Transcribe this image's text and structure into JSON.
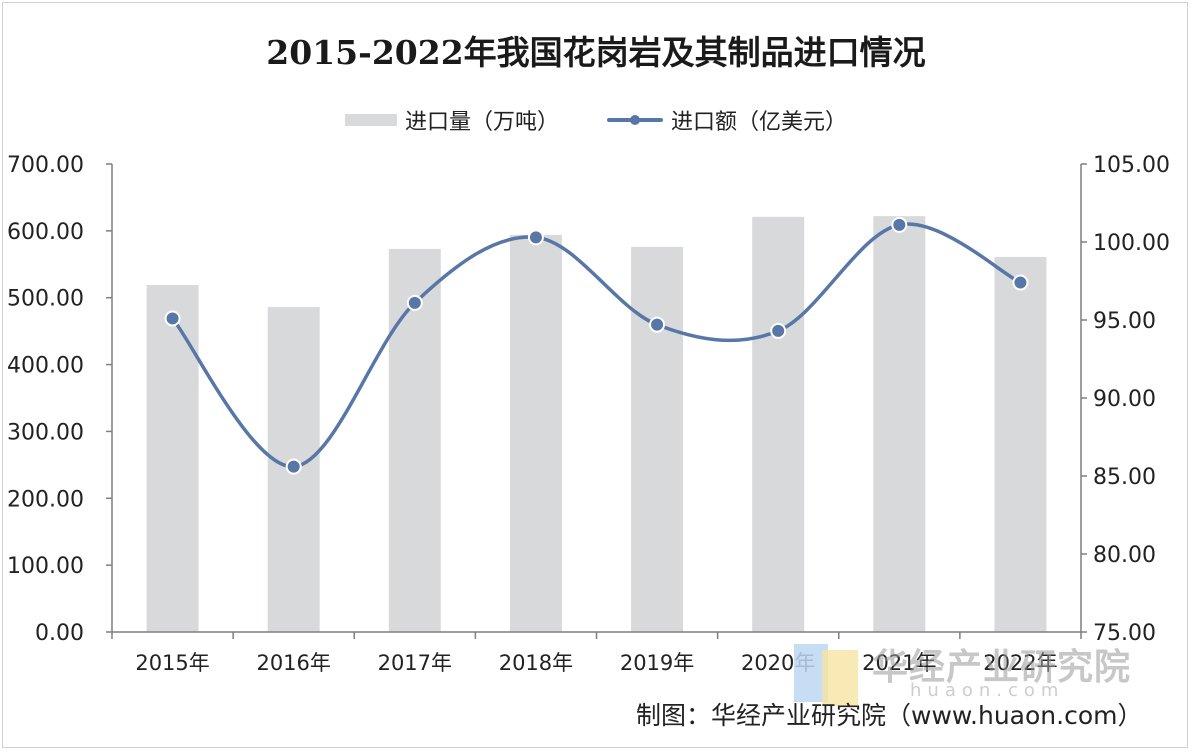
{
  "title": "2015-2022年我国花岗岩及其制品进口情况",
  "legend": {
    "bar_label": "进口量（万吨）",
    "line_label": "进口额（亿美元）"
  },
  "source": "制图：华经产业研究院（www.huaon.com）",
  "watermark": {
    "text": "华经产业研究院",
    "url": "huaon.com"
  },
  "colors": {
    "bar": "#d8d9db",
    "line": "#5876a6",
    "marker_fill": "#5876a6",
    "marker_stroke": "#ffffff",
    "axis": "#7f7f7f"
  },
  "chart_data": {
    "type": "bar+line",
    "categories": [
      "2015年",
      "2016年",
      "2017年",
      "2018年",
      "2019年",
      "2020年",
      "2021年",
      "2022年"
    ],
    "series": [
      {
        "name": "进口量（万吨）",
        "type": "bar",
        "axis": "left",
        "values": [
          519,
          486,
          573,
          594,
          576,
          621,
          622,
          561
        ]
      },
      {
        "name": "进口额（亿美元）",
        "type": "line",
        "axis": "right",
        "smooth": true,
        "values": [
          95.1,
          85.6,
          96.1,
          100.3,
          94.7,
          94.3,
          101.1,
          97.4
        ]
      }
    ],
    "y_left": {
      "min": 0,
      "max": 700,
      "step": 100,
      "ticks": [
        "0.00",
        "100.00",
        "200.00",
        "300.00",
        "400.00",
        "500.00",
        "600.00",
        "700.00"
      ]
    },
    "y_right": {
      "min": 75,
      "max": 105,
      "step": 5,
      "ticks": [
        "75.00",
        "80.00",
        "85.00",
        "90.00",
        "95.00",
        "100.00",
        "105.00"
      ]
    },
    "grid": false,
    "legend_position": "top-center"
  }
}
